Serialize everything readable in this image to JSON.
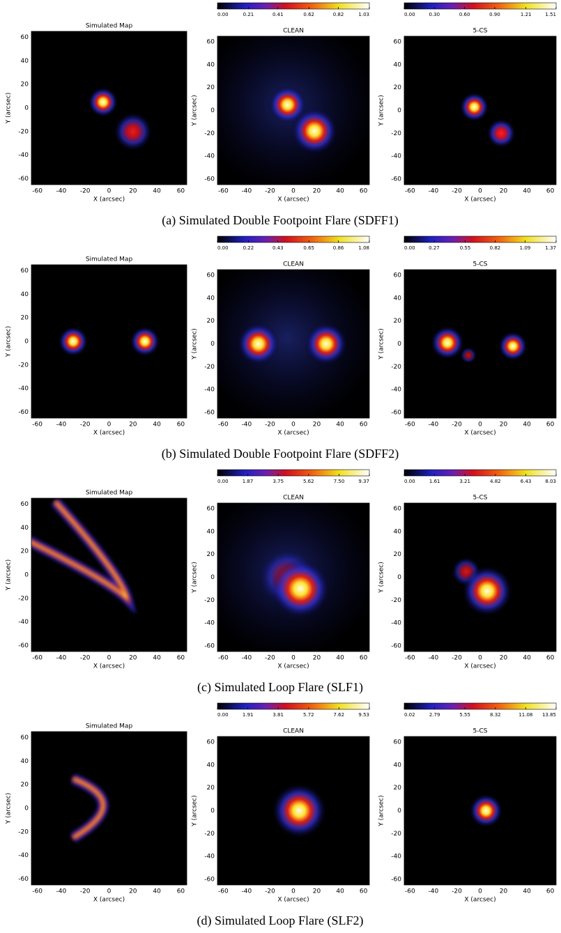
{
  "figure": {
    "xlabel": "X (arcsec)",
    "ylabel": "Y (arcsec)",
    "xlim": [
      -65,
      65
    ],
    "ylim": [
      -65,
      65
    ],
    "xticks": [
      -60,
      -40,
      -20,
      0,
      20,
      40,
      60
    ],
    "yticks": [
      -60,
      -40,
      -20,
      0,
      20,
      40,
      60
    ],
    "rows": [
      {
        "caption": "(a) Simulated Double Footpoint Flare (SDFF1)",
        "panels": [
          {
            "title": "Simulated Map"
          },
          {
            "title": "CLEAN",
            "cbticks": [
              {
                "value": 0,
                "label": "0.00"
              },
              0.21,
              0.41,
              0.62,
              0.82,
              1.03
            ]
          },
          {
            "title": "5-CS",
            "cbticks": [
              {
                "value": 0,
                "label": "0.00"
              },
              {
                "value": 0.3,
                "label": "0.30"
              },
              {
                "value": 0.6,
                "label": "0.60"
              },
              {
                "value": 0.9,
                "label": "0.90"
              },
              1.21,
              1.51
            ]
          }
        ]
      },
      {
        "caption": "(b) Simulated Double Footpoint Flare (SDFF2)",
        "panels": [
          {
            "title": "Simulated Map"
          },
          {
            "title": "CLEAN",
            "cbticks": [
              {
                "value": 0,
                "label": "0.00"
              },
              0.22,
              0.43,
              0.65,
              0.86,
              1.08
            ]
          },
          {
            "title": "5-CS",
            "cbticks": [
              {
                "value": 0,
                "label": "0.00"
              },
              0.27,
              0.55,
              0.82,
              1.09,
              1.37
            ]
          }
        ]
      },
      {
        "caption": "(c) Simulated Loop Flare (SLF1)",
        "panels": [
          {
            "title": "Simulated Map"
          },
          {
            "title": "CLEAN",
            "cbticks": [
              {
                "value": 0,
                "label": "0.00"
              },
              1.87,
              3.75,
              5.62,
              {
                "value": 7.5,
                "label": "7.50"
              },
              9.37
            ]
          },
          {
            "title": "5-CS",
            "cbticks": [
              {
                "value": 0,
                "label": "0.00"
              },
              1.61,
              3.21,
              4.82,
              6.43,
              8.03
            ]
          }
        ]
      },
      {
        "caption": "(d) Simulated Loop Flare (SLF2)",
        "panels": [
          {
            "title": "Simulated Map"
          },
          {
            "title": "CLEAN",
            "cbticks": [
              {
                "value": 0,
                "label": "0.00"
              },
              1.91,
              3.81,
              5.72,
              7.62,
              9.53
            ]
          },
          {
            "title": "5-CS",
            "cbticks": [
              0.02,
              2.79,
              5.55,
              8.32,
              11.08,
              13.85
            ]
          }
        ]
      }
    ]
  }
}
